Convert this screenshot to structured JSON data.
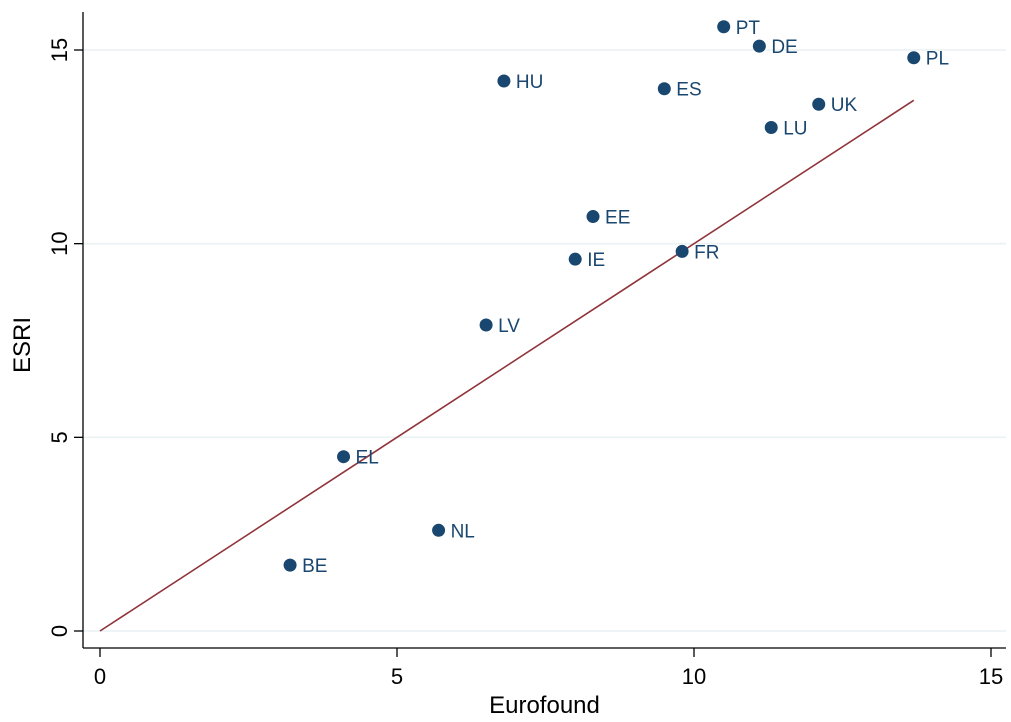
{
  "chart_data": {
    "type": "scatter",
    "xlabel": "Eurofound",
    "ylabel": "ESRI",
    "xlim": [
      0,
      15
    ],
    "ylim": [
      0,
      15
    ],
    "xticks": [
      "0",
      "5",
      "10",
      "15"
    ],
    "yticks": [
      "0",
      "5",
      "10",
      "15"
    ],
    "grid": "horizontal",
    "points": [
      {
        "label": "PT",
        "x": 10.5,
        "y": 15.6
      },
      {
        "label": "DE",
        "x": 11.1,
        "y": 15.1
      },
      {
        "label": "PL",
        "x": 13.7,
        "y": 14.8
      },
      {
        "label": "HU",
        "x": 6.8,
        "y": 14.2
      },
      {
        "label": "ES",
        "x": 9.5,
        "y": 14.0
      },
      {
        "label": "UK",
        "x": 12.1,
        "y": 13.6
      },
      {
        "label": "LU",
        "x": 11.3,
        "y": 13.0
      },
      {
        "label": "EE",
        "x": 8.3,
        "y": 10.7
      },
      {
        "label": "FR",
        "x": 9.8,
        "y": 9.8
      },
      {
        "label": "IE",
        "x": 8.0,
        "y": 9.6
      },
      {
        "label": "LV",
        "x": 6.5,
        "y": 7.9
      },
      {
        "label": "EL",
        "x": 4.1,
        "y": 4.5
      },
      {
        "label": "NL",
        "x": 5.7,
        "y": 2.6
      },
      {
        "label": "BE",
        "x": 3.2,
        "y": 1.7
      }
    ],
    "reference_line": {
      "x": [
        0,
        13.7
      ],
      "y": [
        0,
        13.7
      ]
    },
    "colors": {
      "marker": "#1a476f",
      "label": "#1a476f",
      "line": "#90353b",
      "grid": "#eaf2f3",
      "axis": "#000000"
    }
  }
}
